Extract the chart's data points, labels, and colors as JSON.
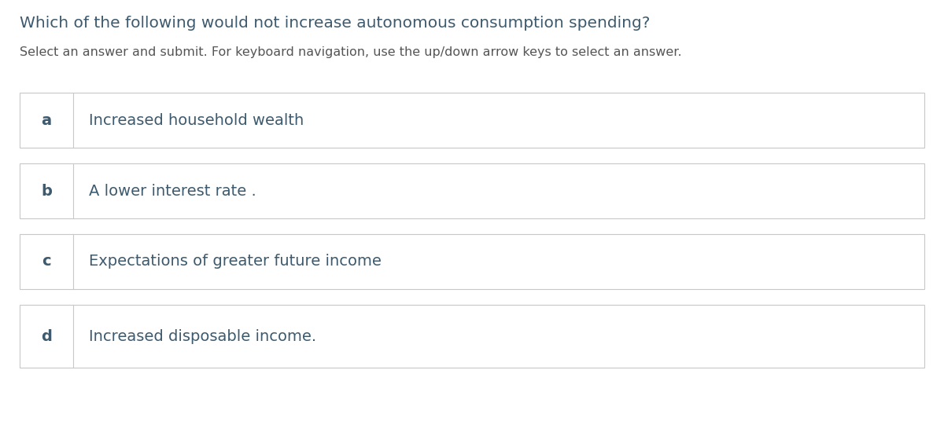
{
  "title": "Which of the following would not increase autonomous consumption spending?",
  "subtitle": "Select an answer and submit. For keyboard navigation, use the up/down arrow keys to select an answer.",
  "options": [
    {
      "label": "a",
      "text": "Increased household wealth"
    },
    {
      "label": "b",
      "text": "A lower interest rate ."
    },
    {
      "label": "c",
      "text": "Expectations of greater future income"
    },
    {
      "label": "d",
      "text": "Increased disposable income."
    }
  ],
  "bg_color": "#ffffff",
  "box_border_color": "#c8c8c8",
  "box_fill_color": "#ffffff",
  "divider_color": "#c8c8c8",
  "title_color": "#3d5a6e",
  "subtitle_color": "#555555",
  "label_color": "#3d5a6e",
  "text_color": "#3d5a6e",
  "title_fontsize": 14.5,
  "subtitle_fontsize": 11.5,
  "label_fontsize": 14,
  "text_fontsize": 14
}
